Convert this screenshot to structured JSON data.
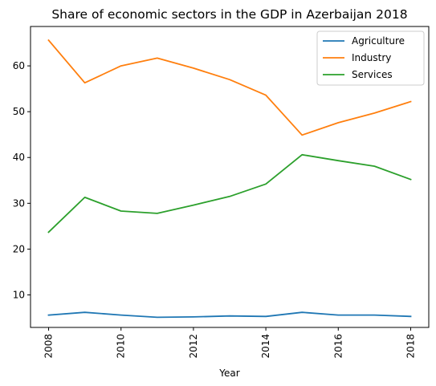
{
  "chart_data": {
    "type": "line",
    "title": "Share of economic sectors in the GDP in Azerbaijan 2018",
    "xlabel": "Year",
    "ylabel": "",
    "x": [
      2008,
      2009,
      2010,
      2011,
      2012,
      2013,
      2014,
      2015,
      2016,
      2017,
      2018
    ],
    "xticks": [
      "2008",
      "2010",
      "2012",
      "2014",
      "2016",
      "2018"
    ],
    "yticks": [
      "10",
      "20",
      "30",
      "40",
      "50",
      "60"
    ],
    "xlim": [
      2007.5,
      2018.5
    ],
    "ylim": [
      2.9,
      68.6
    ],
    "legend_position": "top-right",
    "series": [
      {
        "name": "Agriculture",
        "color": "#1f77b4",
        "values": [
          5.6,
          6.2,
          5.6,
          5.1,
          5.2,
          5.4,
          5.3,
          6.2,
          5.6,
          5.6,
          5.3
        ]
      },
      {
        "name": "Industry",
        "color": "#ff7f0e",
        "values": [
          65.6,
          56.3,
          60.0,
          61.7,
          59.5,
          57.0,
          53.6,
          44.9,
          47.6,
          49.7,
          52.2
        ]
      },
      {
        "name": "Services",
        "color": "#2ca02c",
        "values": [
          23.7,
          31.3,
          28.3,
          27.8,
          29.6,
          31.5,
          34.2,
          40.6,
          39.3,
          38.1,
          35.2
        ]
      }
    ]
  }
}
